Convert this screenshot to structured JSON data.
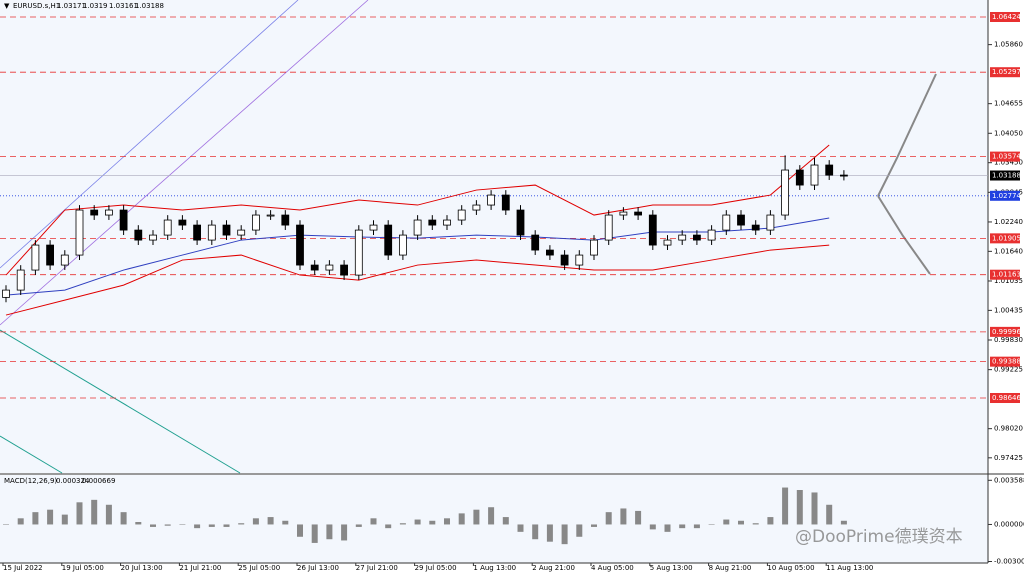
{
  "chart_data": {
    "type": "candlestick",
    "header": {
      "symbol": "EURUSD.s,H1",
      "open": 1.03171,
      "high": 1.0319,
      "low": 1.03161,
      "close": 1.03188
    },
    "categories": [
      "15 Jul 2022",
      null,
      null,
      null,
      "19 Jul 05:00",
      null,
      null,
      null,
      "20 Jul 13:00",
      null,
      null,
      null,
      "21 Jul 21:00",
      null,
      null,
      null,
      "25 Jul 05:00",
      null,
      null,
      null,
      "26 Jul 13:00",
      null,
      null,
      null,
      "27 Jul 21:00",
      null,
      null,
      null,
      "29 Jul 05:00",
      null,
      null,
      null,
      "1 Aug 13:00",
      null,
      null,
      null,
      "2 Aug 21:00",
      null,
      null,
      null,
      "4 Aug 05:00",
      null,
      null,
      null,
      "5 Aug 13:00",
      null,
      null,
      null,
      "8 Aug 21:00",
      null,
      null,
      null,
      "10 Aug 05:00",
      null,
      null,
      null,
      "11 Aug 13:00",
      null
    ],
    "open": [
      1.007,
      1.00849,
      1.01258,
      1.01768,
      1.0136,
      1.01564,
      1.02483,
      1.02381,
      1.02483,
      1.02074,
      1.0187,
      1.01972,
      1.02279,
      1.02176,
      1.0187,
      1.02176,
      1.01972,
      1.02074,
      1.02381,
      1.02381,
      1.02176,
      1.0136,
      1.01258,
      1.0136,
      1.01155,
      1.02074,
      1.02176,
      1.01564,
      1.01972,
      1.02279,
      1.02176,
      1.02279,
      1.02483,
      1.02585,
      1.02789,
      1.02483,
      1.01972,
      1.01666,
      1.01564,
      1.0136,
      1.01564,
      1.0187,
      1.02381,
      1.02442,
      1.02381,
      1.01768,
      1.0187,
      1.01972,
      1.0187,
      1.02074,
      1.02381,
      1.02176,
      1.02074,
      1.02381,
      1.033,
      1.02993,
      1.03402,
      1.03197
    ],
    "high": [
      1.00949,
      1.01358,
      1.01868,
      1.01868,
      1.01664,
      1.02583,
      1.02583,
      1.02583,
      1.02583,
      1.02174,
      1.02072,
      1.02379,
      1.02379,
      1.02276,
      1.02276,
      1.02276,
      1.02174,
      1.02481,
      1.02481,
      1.02481,
      1.02276,
      1.0146,
      1.0146,
      1.0146,
      1.02174,
      1.02276,
      1.02276,
      1.02072,
      1.02379,
      1.02379,
      1.02379,
      1.02583,
      1.02685,
      1.02889,
      1.02889,
      1.02583,
      1.02072,
      1.01766,
      1.01664,
      1.01664,
      1.0197,
      1.02481,
      1.02542,
      1.02542,
      1.02481,
      1.0197,
      1.02072,
      1.02072,
      1.02174,
      1.02481,
      1.02481,
      1.02276,
      1.02481,
      1.036,
      1.034,
      1.0355,
      1.03502,
      1.03297
    ],
    "low": [
      1.006,
      1.00749,
      1.01158,
      1.0126,
      1.0126,
      1.01464,
      1.02281,
      1.02281,
      1.01974,
      1.0177,
      1.0177,
      1.01872,
      1.02076,
      1.0177,
      1.0177,
      1.01872,
      1.01872,
      1.01974,
      1.02281,
      1.02076,
      1.0126,
      1.01158,
      1.01158,
      1.01055,
      1.01055,
      1.01974,
      1.01464,
      1.01464,
      1.01872,
      1.02076,
      1.02076,
      1.02179,
      1.02383,
      1.02485,
      1.02383,
      1.01872,
      1.01566,
      1.01464,
      1.0126,
      1.0126,
      1.01464,
      1.0177,
      1.02281,
      1.02281,
      1.01668,
      1.01668,
      1.0177,
      1.0177,
      1.0177,
      1.01974,
      1.02076,
      1.01974,
      1.01974,
      1.02281,
      1.02893,
      1.02893,
      1.03097,
      1.03088
    ],
    "close": [
      1.00849,
      1.01258,
      1.01768,
      1.0136,
      1.01564,
      1.02483,
      1.02381,
      1.02483,
      1.02074,
      1.0187,
      1.01972,
      1.02279,
      1.02176,
      1.0187,
      1.02176,
      1.01972,
      1.02074,
      1.02381,
      1.02381,
      1.02176,
      1.0136,
      1.01258,
      1.0136,
      1.01155,
      1.02074,
      1.02176,
      1.01564,
      1.01972,
      1.02279,
      1.02176,
      1.02279,
      1.02483,
      1.02585,
      1.02789,
      1.02483,
      1.01972,
      1.01666,
      1.01564,
      1.0136,
      1.01564,
      1.0187,
      1.02381,
      1.02442,
      1.02381,
      1.01768,
      1.0187,
      1.01972,
      1.0187,
      1.02074,
      1.02381,
      1.02176,
      1.02074,
      1.02381,
      1.033,
      1.02993,
      1.03402,
      1.03197,
      1.03188
    ],
    "indicators": {
      "x": [
        0,
        4,
        8,
        12,
        16,
        20,
        24,
        28,
        32,
        36,
        40,
        44,
        48,
        52,
        56
      ],
      "lines": [
        {
          "color": "#e00000",
          "values": [
            1.01156,
            1.02483,
            1.02585,
            1.02483,
            1.02585,
            1.02483,
            1.02687,
            1.02585,
            1.02891,
            1.02993,
            1.02381,
            1.02585,
            1.02585,
            1.02789,
            1.0381
          ]
        },
        {
          "color": "#e00000",
          "values": [
            1.00339,
            1.00645,
            1.00951,
            1.01462,
            1.01564,
            1.01156,
            1.01053,
            1.0136,
            1.01462,
            1.0136,
            1.01258,
            1.01258,
            1.01462,
            1.01666,
            1.01768
          ]
        },
        {
          "color": "#3040c0",
          "values": [
            1.00747,
            1.00849,
            1.01258,
            1.01564,
            1.0187,
            1.01972,
            1.01932,
            1.01911,
            1.01972,
            1.01932,
            1.0187,
            1.02034,
            1.02034,
            1.02115,
            1.0232
          ]
        }
      ]
    },
    "ylim": [
      0.97115,
      1.06771
    ],
    "yticks": [
      {
        "value": 1.0586,
        "label": "1.05860"
      },
      {
        "value": 1.04655,
        "label": "1.04655"
      },
      {
        "value": 1.0405,
        "label": "1.04050"
      },
      {
        "value": 1.0345,
        "label": "1.03450"
      },
      {
        "value": 1.02845,
        "label": "1.02845"
      },
      {
        "value": 1.0224,
        "label": "1.02240"
      },
      {
        "value": 1.0164,
        "label": "1.01640"
      },
      {
        "value": 1.01035,
        "label": "1.01035"
      },
      {
        "value": 1.00435,
        "label": "1.00435"
      },
      {
        "value": 0.9983,
        "label": "0.99830"
      },
      {
        "value": 0.99225,
        "label": "0.99225"
      },
      {
        "value": 0.9802,
        "label": "0.98020"
      },
      {
        "value": 0.97425,
        "label": "0.97425"
      }
    ],
    "levels": [
      1.06424,
      1.05297,
      1.03574,
      1.01905,
      1.01163,
      0.99996,
      0.99388,
      0.98646
    ],
    "level_color": "#e83030",
    "pivot": 1.02774,
    "pivot_color": "#2040e0",
    "current_price": 1.03188,
    "macd": {
      "label": "MACD(12,26,9)",
      "main": 0.000324,
      "signal": 0.000669,
      "color": "#888888",
      "values": [
        0.0,
        0.0005,
        0.001,
        0.0012,
        0.0008,
        0.0018,
        0.002,
        0.0016,
        0.001,
        0.0002,
        -0.0002,
        -0.0001,
        0.0,
        -0.0003,
        -0.0002,
        -0.0002,
        0.0001,
        0.0005,
        0.0006,
        0.0003,
        -0.001,
        -0.0015,
        -0.0012,
        -0.0013,
        -0.0002,
        0.0005,
        -0.0003,
        0.0001,
        0.0004,
        0.0003,
        0.0005,
        0.0009,
        0.0012,
        0.0014,
        0.0006,
        -0.0006,
        -0.0012,
        -0.0014,
        -0.0016,
        -0.001,
        -0.0002,
        0.001,
        0.0013,
        0.0011,
        -0.0004,
        -0.0006,
        -0.0003,
        -0.0003,
        0.0,
        0.0004,
        0.0003,
        0.0001,
        0.0006,
        0.003,
        0.0028,
        0.0026,
        0.0016,
        0.0003
      ],
      "ylim": [
        -0.00305,
        0.0041
      ],
      "yticks": [
        {
          "value": 0.003588,
          "label": "0.003588"
        },
        {
          "value": 0,
          "label": "0.000000"
        },
        {
          "value": -0.003009,
          "label": "-0.003009"
        }
      ]
    },
    "watermark": "@DooPrime德璞资本"
  }
}
